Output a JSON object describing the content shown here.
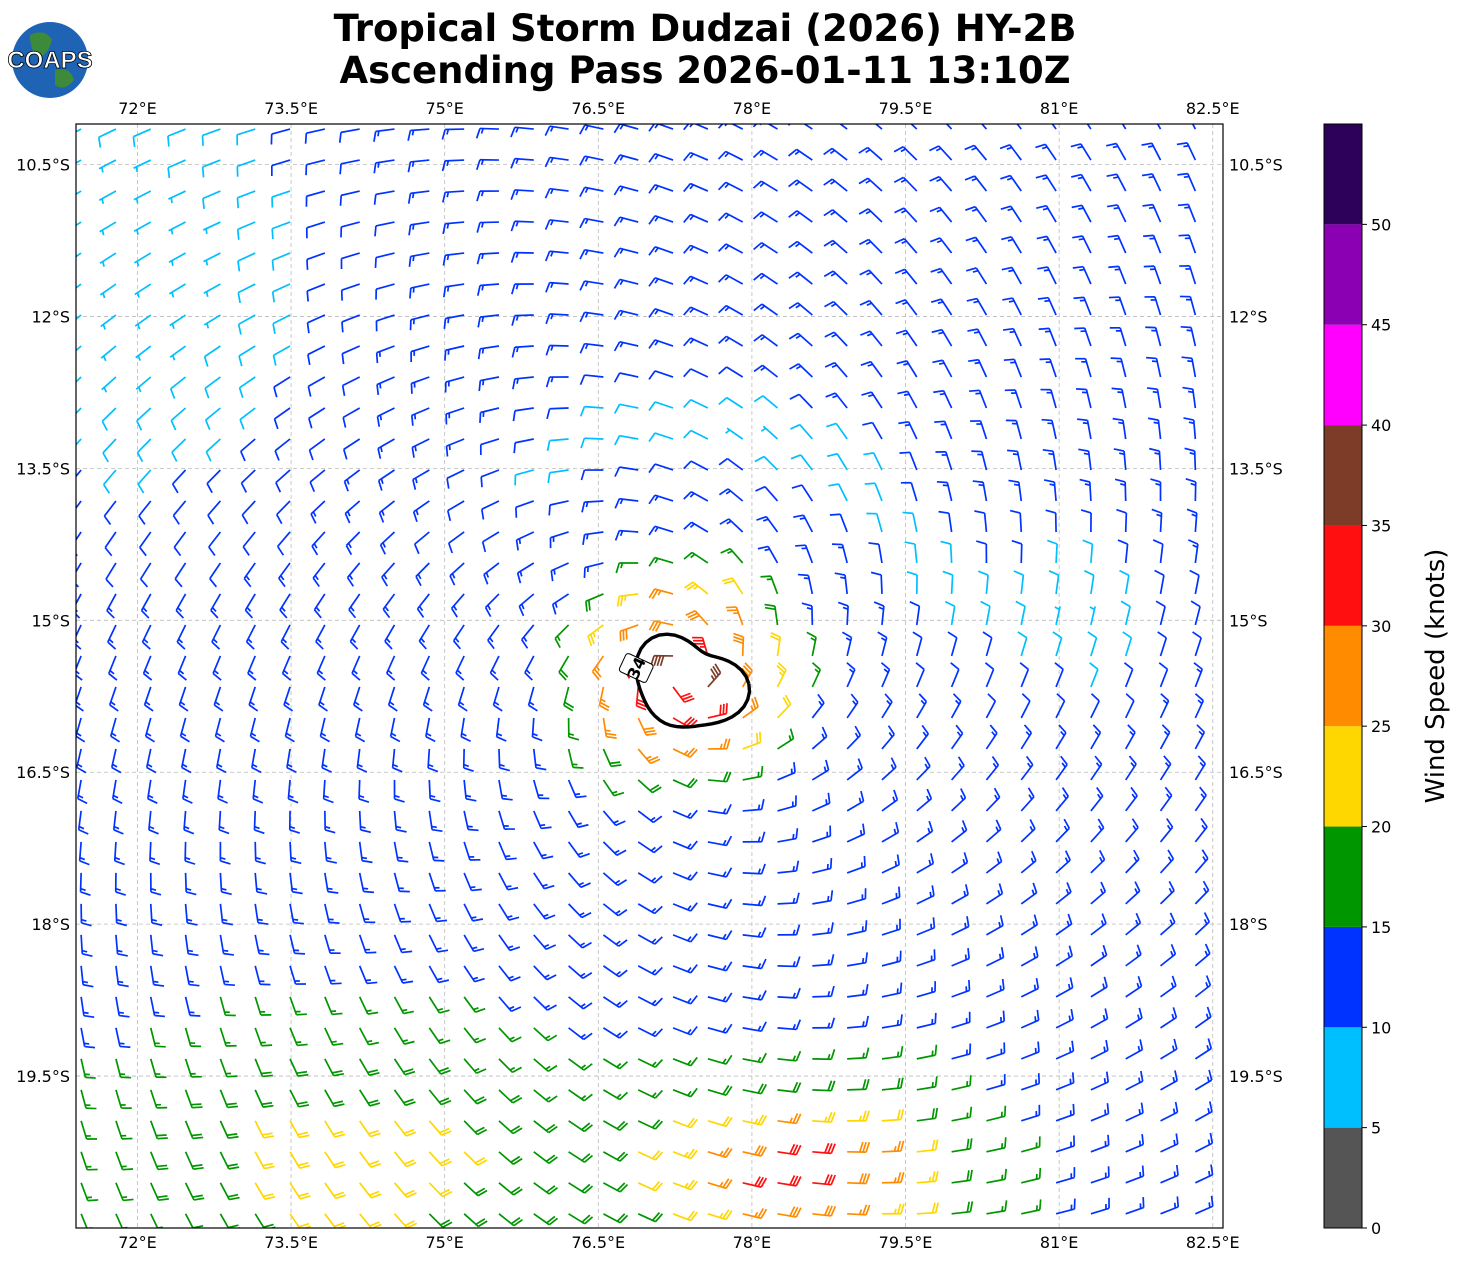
{
  "title": {
    "line1": "Tropical Storm Dudzai (2026) HY-2B",
    "line2": "Ascending Pass 2026-01-11 13:10Z"
  },
  "logo": {
    "text": "COAPS"
  },
  "map": {
    "lon_range": [
      71.4,
      82.6
    ],
    "lat_range": [
      -21.0,
      -10.1
    ],
    "lon_ticks": [
      "72°E",
      "73.5°E",
      "75°E",
      "76.5°E",
      "78°E",
      "79.5°E",
      "81°E",
      "82.5°E"
    ],
    "lat_ticks": [
      "10.5°S",
      "12°S",
      "13.5°S",
      "15°S",
      "16.5°S",
      "18°S",
      "19.5°S"
    ],
    "grid": true,
    "storm_center": {
      "lon": 77.3,
      "lat": -15.55
    },
    "contour_label": "34"
  },
  "colorbar": {
    "label": "Wind Speed (knots)",
    "ticks": [
      "0",
      "5",
      "10",
      "15",
      "20",
      "25",
      "30",
      "35",
      "40",
      "45",
      "50"
    ],
    "bins": [
      {
        "min": 0,
        "max": 5,
        "color": "#555555"
      },
      {
        "min": 5,
        "max": 10,
        "color": "#00bfff"
      },
      {
        "min": 10,
        "max": 15,
        "color": "#0033ff"
      },
      {
        "min": 15,
        "max": 20,
        "color": "#009600"
      },
      {
        "min": 20,
        "max": 25,
        "color": "#ffd700"
      },
      {
        "min": 25,
        "max": 30,
        "color": "#ff8c00"
      },
      {
        "min": 30,
        "max": 35,
        "color": "#ff0f0f"
      },
      {
        "min": 35,
        "max": 40,
        "color": "#7d3c28"
      },
      {
        "min": 40,
        "max": 45,
        "color": "#ff00ff"
      },
      {
        "min": 45,
        "max": 50,
        "color": "#8c00b4"
      },
      {
        "min": 50,
        "max": 55,
        "color": "#2d005a"
      }
    ]
  }
}
